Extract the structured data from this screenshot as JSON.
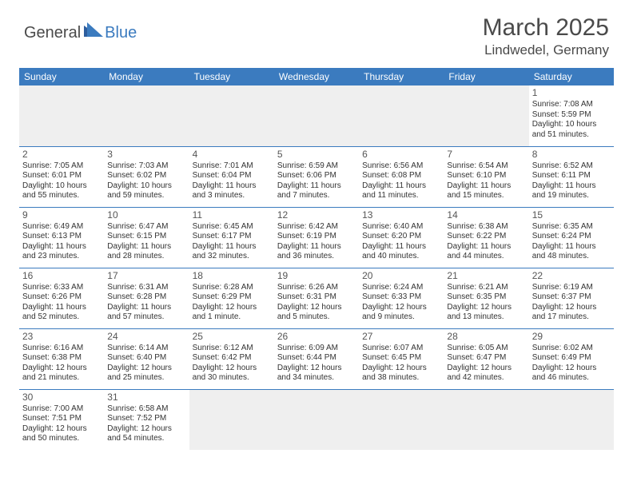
{
  "brand": {
    "word1": "General",
    "word2": "Blue"
  },
  "title": "March 2025",
  "location": "Lindwedel, Germany",
  "colors": {
    "header_bg": "#3b7bbf",
    "header_text": "#ffffff",
    "border": "#3b7bbf",
    "logo_dark": "#4a4a4a",
    "logo_blue": "#3b7bbf",
    "text": "#333333",
    "empty_bg": "#efefef"
  },
  "day_headers": [
    "Sunday",
    "Monday",
    "Tuesday",
    "Wednesday",
    "Thursday",
    "Friday",
    "Saturday"
  ],
  "weeks": [
    [
      null,
      null,
      null,
      null,
      null,
      null,
      {
        "d": "1",
        "sr": "7:08 AM",
        "ss": "5:59 PM",
        "dl": "10 hours and 51 minutes."
      }
    ],
    [
      {
        "d": "2",
        "sr": "7:05 AM",
        "ss": "6:01 PM",
        "dl": "10 hours and 55 minutes."
      },
      {
        "d": "3",
        "sr": "7:03 AM",
        "ss": "6:02 PM",
        "dl": "10 hours and 59 minutes."
      },
      {
        "d": "4",
        "sr": "7:01 AM",
        "ss": "6:04 PM",
        "dl": "11 hours and 3 minutes."
      },
      {
        "d": "5",
        "sr": "6:59 AM",
        "ss": "6:06 PM",
        "dl": "11 hours and 7 minutes."
      },
      {
        "d": "6",
        "sr": "6:56 AM",
        "ss": "6:08 PM",
        "dl": "11 hours and 11 minutes."
      },
      {
        "d": "7",
        "sr": "6:54 AM",
        "ss": "6:10 PM",
        "dl": "11 hours and 15 minutes."
      },
      {
        "d": "8",
        "sr": "6:52 AM",
        "ss": "6:11 PM",
        "dl": "11 hours and 19 minutes."
      }
    ],
    [
      {
        "d": "9",
        "sr": "6:49 AM",
        "ss": "6:13 PM",
        "dl": "11 hours and 23 minutes."
      },
      {
        "d": "10",
        "sr": "6:47 AM",
        "ss": "6:15 PM",
        "dl": "11 hours and 28 minutes."
      },
      {
        "d": "11",
        "sr": "6:45 AM",
        "ss": "6:17 PM",
        "dl": "11 hours and 32 minutes."
      },
      {
        "d": "12",
        "sr": "6:42 AM",
        "ss": "6:19 PM",
        "dl": "11 hours and 36 minutes."
      },
      {
        "d": "13",
        "sr": "6:40 AM",
        "ss": "6:20 PM",
        "dl": "11 hours and 40 minutes."
      },
      {
        "d": "14",
        "sr": "6:38 AM",
        "ss": "6:22 PM",
        "dl": "11 hours and 44 minutes."
      },
      {
        "d": "15",
        "sr": "6:35 AM",
        "ss": "6:24 PM",
        "dl": "11 hours and 48 minutes."
      }
    ],
    [
      {
        "d": "16",
        "sr": "6:33 AM",
        "ss": "6:26 PM",
        "dl": "11 hours and 52 minutes."
      },
      {
        "d": "17",
        "sr": "6:31 AM",
        "ss": "6:28 PM",
        "dl": "11 hours and 57 minutes."
      },
      {
        "d": "18",
        "sr": "6:28 AM",
        "ss": "6:29 PM",
        "dl": "12 hours and 1 minute."
      },
      {
        "d": "19",
        "sr": "6:26 AM",
        "ss": "6:31 PM",
        "dl": "12 hours and 5 minutes."
      },
      {
        "d": "20",
        "sr": "6:24 AM",
        "ss": "6:33 PM",
        "dl": "12 hours and 9 minutes."
      },
      {
        "d": "21",
        "sr": "6:21 AM",
        "ss": "6:35 PM",
        "dl": "12 hours and 13 minutes."
      },
      {
        "d": "22",
        "sr": "6:19 AM",
        "ss": "6:37 PM",
        "dl": "12 hours and 17 minutes."
      }
    ],
    [
      {
        "d": "23",
        "sr": "6:16 AM",
        "ss": "6:38 PM",
        "dl": "12 hours and 21 minutes."
      },
      {
        "d": "24",
        "sr": "6:14 AM",
        "ss": "6:40 PM",
        "dl": "12 hours and 25 minutes."
      },
      {
        "d": "25",
        "sr": "6:12 AM",
        "ss": "6:42 PM",
        "dl": "12 hours and 30 minutes."
      },
      {
        "d": "26",
        "sr": "6:09 AM",
        "ss": "6:44 PM",
        "dl": "12 hours and 34 minutes."
      },
      {
        "d": "27",
        "sr": "6:07 AM",
        "ss": "6:45 PM",
        "dl": "12 hours and 38 minutes."
      },
      {
        "d": "28",
        "sr": "6:05 AM",
        "ss": "6:47 PM",
        "dl": "12 hours and 42 minutes."
      },
      {
        "d": "29",
        "sr": "6:02 AM",
        "ss": "6:49 PM",
        "dl": "12 hours and 46 minutes."
      }
    ],
    [
      {
        "d": "30",
        "sr": "7:00 AM",
        "ss": "7:51 PM",
        "dl": "12 hours and 50 minutes."
      },
      {
        "d": "31",
        "sr": "6:58 AM",
        "ss": "7:52 PM",
        "dl": "12 hours and 54 minutes."
      },
      null,
      null,
      null,
      null,
      null
    ]
  ],
  "labels": {
    "sunrise": "Sunrise:",
    "sunset": "Sunset:",
    "daylight": "Daylight:"
  }
}
